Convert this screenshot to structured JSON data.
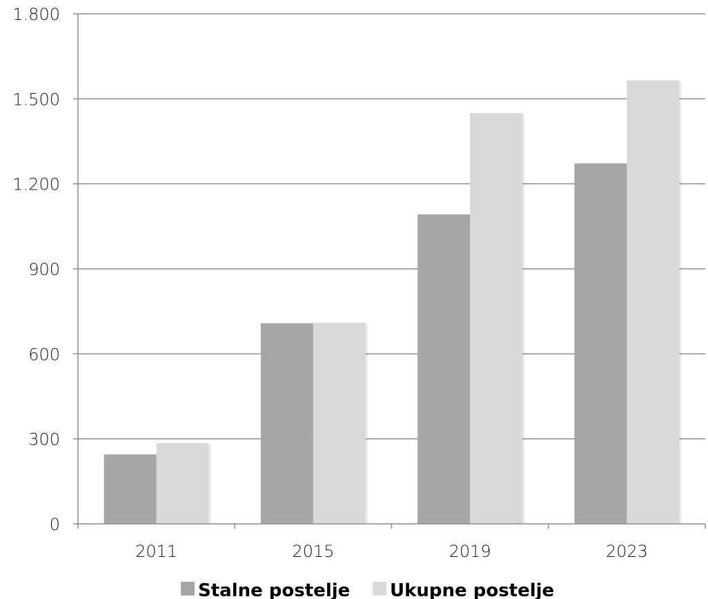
{
  "chart_data": {
    "type": "bar",
    "categories": [
      "2011",
      "2015",
      "2019",
      "2023"
    ],
    "series": [
      {
        "name": "Stalne postelje",
        "values": [
          245,
          708,
          1092,
          1272
        ],
        "color": "#a6a6a6"
      },
      {
        "name": "Ukupne postelje",
        "values": [
          285,
          710,
          1450,
          1565
        ],
        "color": "#d9d9d9"
      }
    ],
    "ylim": [
      0,
      1800
    ],
    "yticks": [
      {
        "value": 0,
        "label": "0"
      },
      {
        "value": 300,
        "label": "300"
      },
      {
        "value": 600,
        "label": "600"
      },
      {
        "value": 900,
        "label": "900"
      },
      {
        "value": 1200,
        "label": "1.200"
      },
      {
        "value": 1500,
        "label": "1.500"
      },
      {
        "value": 1800,
        "label": "1.800"
      }
    ],
    "grid": true,
    "legend": "bottom",
    "title": "",
    "xlabel": "",
    "ylabel": ""
  }
}
